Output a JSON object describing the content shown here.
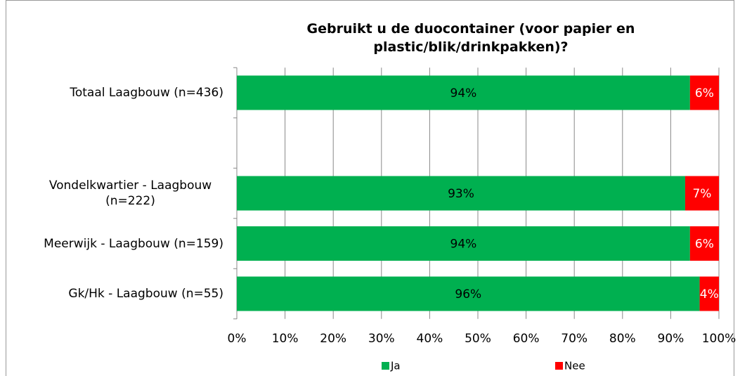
{
  "chart_data": {
    "type": "stacked_barh",
    "title": "Gebruikt u de duocontainer (voor papier en plastic/blik/drinkpakken)?",
    "categories": [
      "Totaal Laagbouw (n=436)",
      null,
      "Vondelkwartier - Laagbouw (n=222)",
      "Meerwijk - Laagbouw (n=159)",
      "Gk/Hk - Laagbouw (n=55)"
    ],
    "series": [
      {
        "name": "Ja",
        "color": "#00b050",
        "values": [
          94,
          null,
          93,
          94,
          96
        ],
        "value_labels": [
          "94%",
          null,
          "93%",
          "94%",
          "96%"
        ]
      },
      {
        "name": "Nee",
        "color": "#ff0000",
        "values": [
          6,
          null,
          7,
          6,
          4
        ],
        "value_labels": [
          "6%",
          null,
          "7%",
          "6%",
          "4%"
        ]
      }
    ],
    "xlim": [
      0,
      100
    ],
    "xticks": [
      {
        "value": 0,
        "label": "0%"
      },
      {
        "value": 10,
        "label": "10%"
      },
      {
        "value": 20,
        "label": "20%"
      },
      {
        "value": 30,
        "label": "30%"
      },
      {
        "value": 40,
        "label": "40%"
      },
      {
        "value": 50,
        "label": "50%"
      },
      {
        "value": 60,
        "label": "60%"
      },
      {
        "value": 70,
        "label": "70%"
      },
      {
        "value": 80,
        "label": "80%"
      },
      {
        "value": 90,
        "label": "90%"
      },
      {
        "value": 100,
        "label": "100%"
      }
    ],
    "grid": true,
    "legend": "bottom"
  }
}
